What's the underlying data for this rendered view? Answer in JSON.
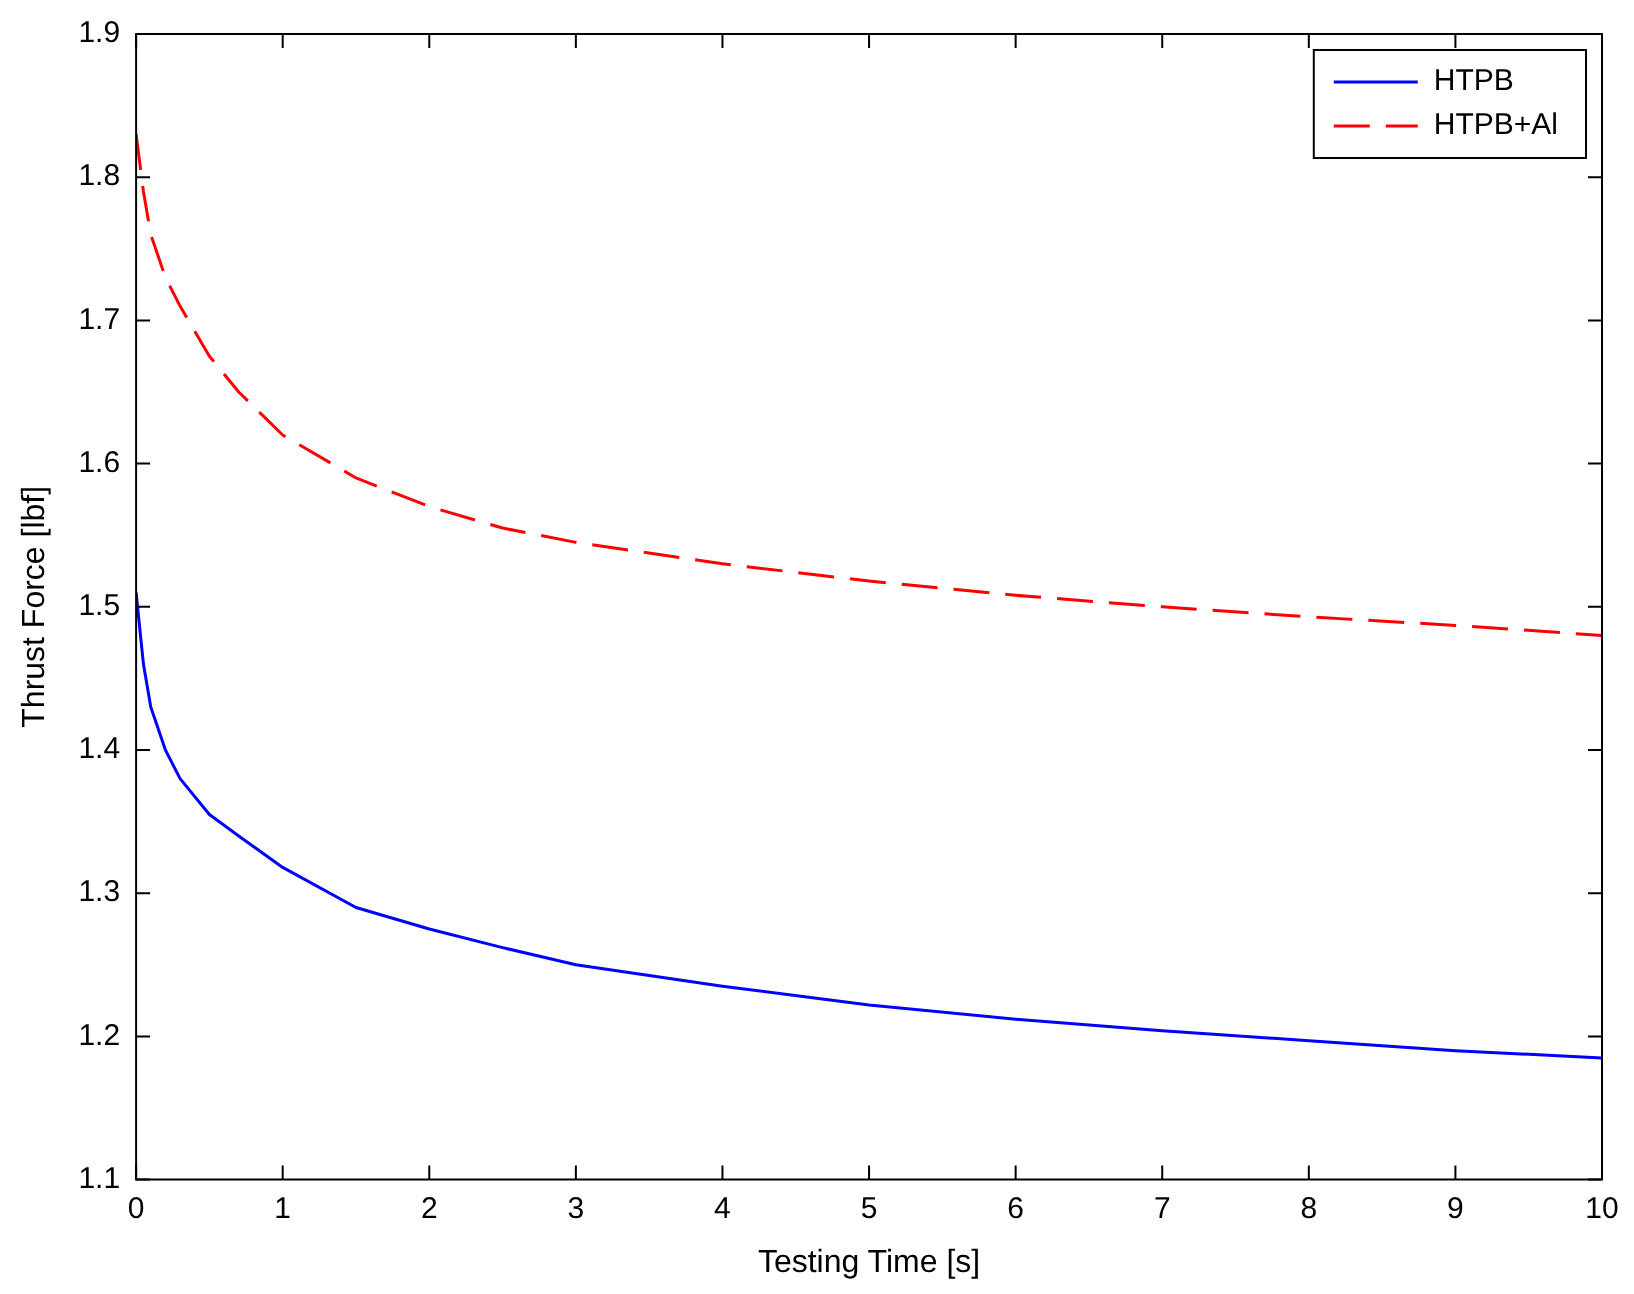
{
  "chart_data": {
    "type": "line",
    "xlabel": "Testing Time [s]",
    "ylabel": "Thrust Force [lbf]",
    "xlim": [
      0,
      10
    ],
    "xticks": [
      0,
      1,
      2,
      3,
      4,
      5,
      6,
      7,
      8,
      9,
      10
    ],
    "ylim": [
      1.1,
      1.9
    ],
    "yticks": [
      1.1,
      1.2,
      1.3,
      1.4,
      1.5,
      1.6,
      1.7,
      1.8,
      1.9
    ],
    "grid": false,
    "legend": "top right",
    "marker": "none",
    "series": [
      {
        "name": "HTPB",
        "color": "#0000ff",
        "line_style": "solid",
        "x": [
          0,
          0.05,
          0.1,
          0.2,
          0.3,
          0.5,
          0.7,
          1,
          1.5,
          2,
          2.5,
          3,
          4,
          5,
          6,
          7,
          8,
          9,
          10
        ],
        "values": [
          1.51,
          1.46,
          1.43,
          1.4,
          1.38,
          1.355,
          1.34,
          1.318,
          1.29,
          1.275,
          1.262,
          1.25,
          1.235,
          1.222,
          1.212,
          1.204,
          1.197,
          1.19,
          1.185
        ]
      },
      {
        "name": "HTPB+Al",
        "color": "#ff0000",
        "line_style": "dashed",
        "x": [
          0,
          0.05,
          0.1,
          0.2,
          0.3,
          0.5,
          0.7,
          1,
          1.5,
          2,
          2.5,
          3,
          4,
          5,
          6,
          7,
          8,
          9,
          10
        ],
        "values": [
          1.83,
          1.79,
          1.76,
          1.73,
          1.71,
          1.675,
          1.65,
          1.62,
          1.59,
          1.57,
          1.555,
          1.545,
          1.53,
          1.518,
          1.508,
          1.5,
          1.493,
          1.487,
          1.48
        ]
      }
    ]
  }
}
